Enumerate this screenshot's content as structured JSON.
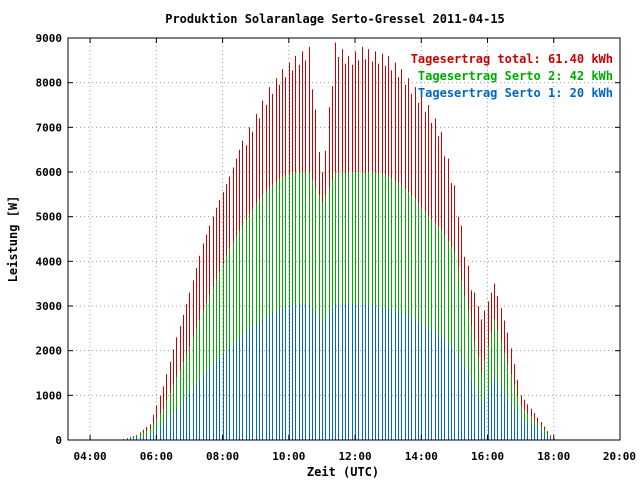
{
  "chart_data": {
    "type": "bar",
    "title": "Produktion Solaranlage Serto-Gressel 2011-04-15",
    "xlabel": "Zeit (UTC)",
    "ylabel": "Leistung [W]",
    "xlim": [
      3.333,
      20.0
    ],
    "ylim": [
      0,
      9000
    ],
    "x_ticks": [
      {
        "value": 4,
        "label": "04:00"
      },
      {
        "value": 6,
        "label": "06:00"
      },
      {
        "value": 8,
        "label": "08:00"
      },
      {
        "value": 10,
        "label": "10:00"
      },
      {
        "value": 12,
        "label": "12:00"
      },
      {
        "value": 14,
        "label": "14:00"
      },
      {
        "value": 16,
        "label": "16:00"
      },
      {
        "value": 18,
        "label": "18:00"
      },
      {
        "value": 20,
        "label": "20:00"
      }
    ],
    "y_ticks": [
      {
        "value": 0,
        "label": "0"
      },
      {
        "value": 1000,
        "label": "1000"
      },
      {
        "value": 2000,
        "label": "2000"
      },
      {
        "value": 3000,
        "label": "3000"
      },
      {
        "value": 4000,
        "label": "4000"
      },
      {
        "value": 5000,
        "label": "5000"
      },
      {
        "value": 6000,
        "label": "6000"
      },
      {
        "value": 7000,
        "label": "7000"
      },
      {
        "value": 8000,
        "label": "8000"
      },
      {
        "value": 9000,
        "label": "9000"
      }
    ],
    "grid": true,
    "legend_position": "top-right",
    "series": [
      {
        "name": "Tagesertrag total: 61.40 kWh",
        "color": "#cc0000",
        "points": [
          [
            5.0,
            20
          ],
          [
            5.4,
            110
          ],
          [
            5.8,
            350
          ],
          [
            6.2,
            1200
          ],
          [
            6.6,
            2300
          ],
          [
            7.0,
            3300
          ],
          [
            7.4,
            4400
          ],
          [
            7.8,
            5200
          ],
          [
            8.2,
            5900
          ],
          [
            8.6,
            6700
          ],
          [
            9.0,
            7300
          ],
          [
            9.4,
            7900
          ],
          [
            9.8,
            8300
          ],
          [
            10.2,
            8600
          ],
          [
            10.6,
            8800
          ],
          [
            11.0,
            6000
          ],
          [
            11.4,
            8900
          ],
          [
            11.8,
            8600
          ],
          [
            12.2,
            8800
          ],
          [
            12.6,
            8700
          ],
          [
            13.0,
            8600
          ],
          [
            13.4,
            8300
          ],
          [
            13.8,
            7900
          ],
          [
            14.2,
            7500
          ],
          [
            14.6,
            6900
          ],
          [
            15.0,
            5700
          ],
          [
            15.4,
            3900
          ],
          [
            15.8,
            2700
          ],
          [
            16.2,
            3500
          ],
          [
            16.6,
            2400
          ],
          [
            17.0,
            1000
          ],
          [
            17.4,
            600
          ],
          [
            17.8,
            200
          ],
          [
            18.0,
            20
          ]
        ]
      },
      {
        "name": "Tagesertrag Serto 2: 42 kWh",
        "color": "#00aa00",
        "points": [
          [
            5.0,
            15
          ],
          [
            5.4,
            80
          ],
          [
            5.8,
            250
          ],
          [
            6.2,
            700
          ],
          [
            6.6,
            1400
          ],
          [
            7.0,
            2100
          ],
          [
            7.4,
            2900
          ],
          [
            7.8,
            3600
          ],
          [
            8.2,
            4300
          ],
          [
            8.6,
            4800
          ],
          [
            9.0,
            5300
          ],
          [
            9.4,
            5650
          ],
          [
            9.8,
            5900
          ],
          [
            10.2,
            6000
          ],
          [
            10.6,
            6000
          ],
          [
            11.0,
            5300
          ],
          [
            11.4,
            6000
          ],
          [
            11.8,
            6000
          ],
          [
            12.2,
            6000
          ],
          [
            12.6,
            6000
          ],
          [
            13.0,
            5900
          ],
          [
            13.4,
            5700
          ],
          [
            13.8,
            5400
          ],
          [
            14.2,
            5000
          ],
          [
            14.6,
            4700
          ],
          [
            15.0,
            4200
          ],
          [
            15.4,
            2900
          ],
          [
            15.8,
            1500
          ],
          [
            16.2,
            2700
          ],
          [
            16.6,
            1700
          ],
          [
            17.0,
            750
          ],
          [
            17.4,
            450
          ],
          [
            17.8,
            150
          ],
          [
            18.0,
            15
          ]
        ]
      },
      {
        "name": "Tagesertrag Serto 1: 20 kWh",
        "color": "#0066cc",
        "points": [
          [
            5.0,
            10
          ],
          [
            5.4,
            40
          ],
          [
            5.8,
            110
          ],
          [
            6.2,
            350
          ],
          [
            6.6,
            700
          ],
          [
            7.0,
            1050
          ],
          [
            7.4,
            1450
          ],
          [
            7.8,
            1750
          ],
          [
            8.2,
            2050
          ],
          [
            8.6,
            2350
          ],
          [
            9.0,
            2600
          ],
          [
            9.4,
            2800
          ],
          [
            9.8,
            2950
          ],
          [
            10.2,
            3050
          ],
          [
            10.6,
            3050
          ],
          [
            11.0,
            2600
          ],
          [
            11.4,
            3050
          ],
          [
            11.8,
            3050
          ],
          [
            12.2,
            3050
          ],
          [
            12.6,
            3000
          ],
          [
            13.0,
            2950
          ],
          [
            13.4,
            2850
          ],
          [
            13.8,
            2700
          ],
          [
            14.2,
            2500
          ],
          [
            14.6,
            2300
          ],
          [
            15.0,
            2000
          ],
          [
            15.4,
            1500
          ],
          [
            15.8,
            800
          ],
          [
            16.2,
            1400
          ],
          [
            16.6,
            900
          ],
          [
            17.0,
            500
          ],
          [
            17.4,
            300
          ],
          [
            17.8,
            90
          ],
          [
            18.0,
            10
          ]
        ]
      }
    ]
  }
}
